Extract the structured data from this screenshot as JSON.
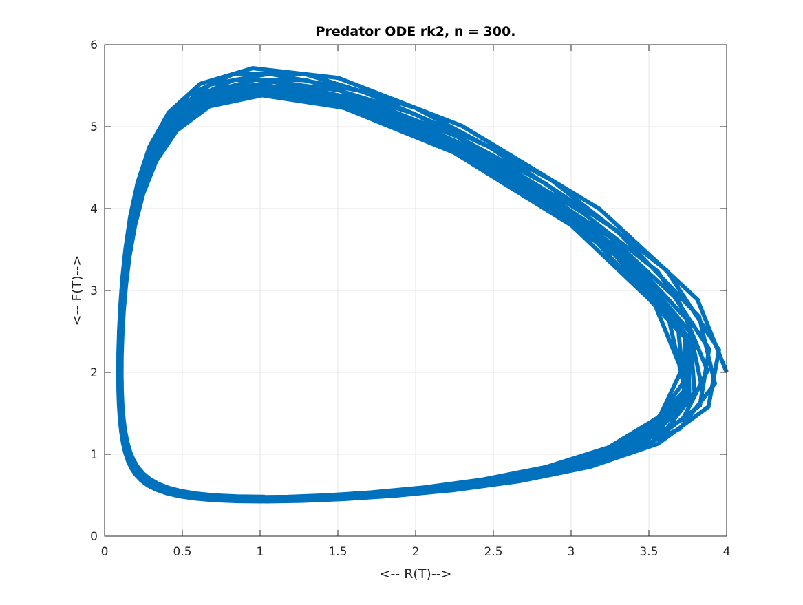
{
  "chart_data": {
    "type": "line",
    "title": "Predator ODE rk2, n = 300.",
    "xlabel": "<-- R(T)-->",
    "ylabel": "<-- F(T)-->",
    "xlim": [
      0,
      4
    ],
    "ylim": [
      0,
      6
    ],
    "xticks": [
      "0",
      "0.5",
      "1",
      "1.5",
      "2",
      "2.5",
      "3",
      "3.5",
      "4"
    ],
    "yticks": [
      "0",
      "1",
      "2",
      "3",
      "4",
      "5",
      "6"
    ],
    "xtick_values": [
      0,
      0.5,
      1,
      1.5,
      2,
      2.5,
      3,
      3.5,
      4
    ],
    "ytick_values": [
      0,
      1,
      2,
      3,
      4,
      5,
      6
    ],
    "grid": true,
    "line_color": "#0072BD",
    "orbit_count": 12,
    "start": {
      "x": 4.0,
      "y": 2.0
    },
    "start_ratio": {
      "fx": 0.96,
      "fy": 0.9
    }
  }
}
